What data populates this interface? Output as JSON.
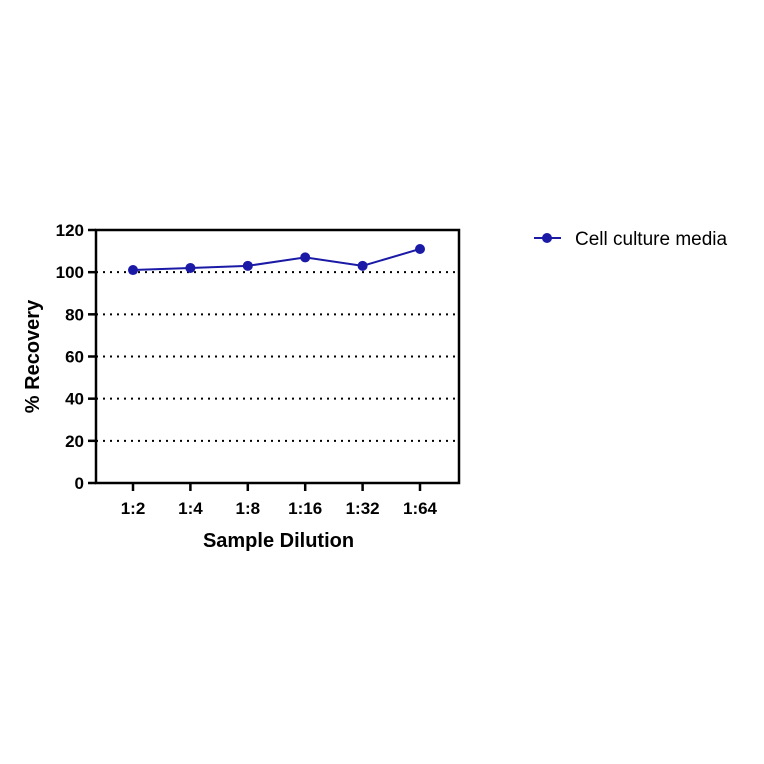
{
  "chart_data": {
    "type": "line",
    "categories": [
      "1:2",
      "1:4",
      "1:8",
      "1:16",
      "1:32",
      "1:64"
    ],
    "series": [
      {
        "name": "Cell culture media",
        "values": [
          101,
          102,
          103,
          107,
          103,
          111
        ],
        "color": "#1a1aa6"
      }
    ],
    "xlabel": "Sample Dilution",
    "ylabel": "% Recovery",
    "ylim": [
      0,
      120
    ],
    "yticks": [
      "0",
      "20",
      "40",
      "60",
      "80",
      "100",
      "120"
    ],
    "grid": "horizontal dotted",
    "legend": "right"
  }
}
